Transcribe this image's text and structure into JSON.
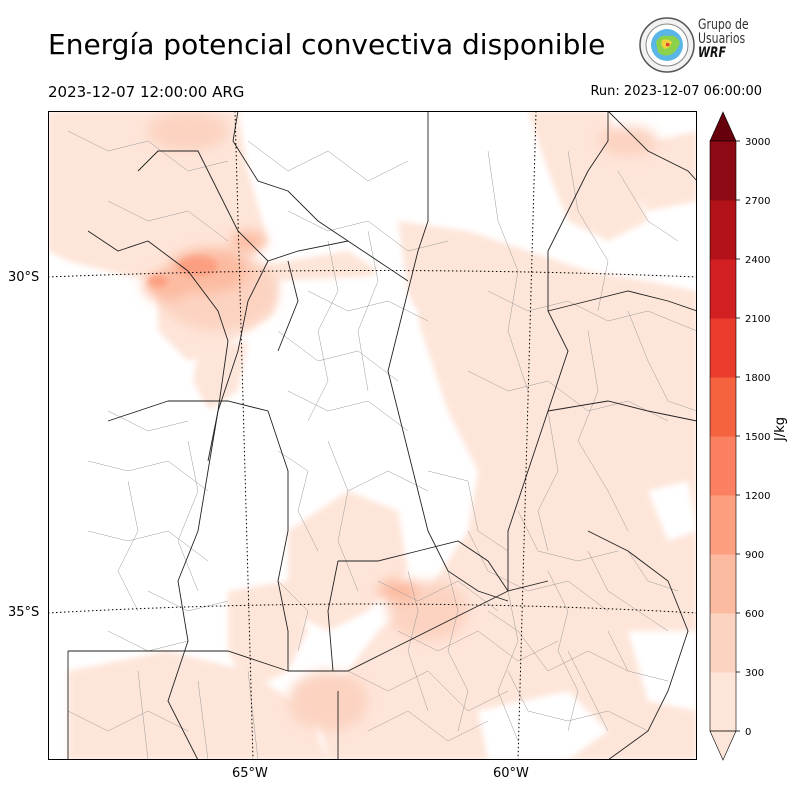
{
  "title": "Energía potencial convectiva disponible",
  "valid_time": "2023-12-07 12:00:00 ARG",
  "run_time": "Run: 2023-12-07 06:00:00",
  "logo": {
    "line1": "Grupo de",
    "line2": "Usuarios",
    "line3": "WRF",
    "icon": "globe-seal-icon"
  },
  "map": {
    "field": "CAPE",
    "lat_labels": [
      "30°S",
      "35°S"
    ],
    "lon_labels": [
      "65°W",
      "60°W"
    ],
    "gridlines": "dotted",
    "colors": {
      "border": "#1a1a1a",
      "department": "#888888",
      "gridline": "#000000"
    }
  },
  "colorbar": {
    "label": "J/kg",
    "ticks": [
      "0",
      "300",
      "600",
      "900",
      "1200",
      "1500",
      "1800",
      "2100",
      "2400",
      "2700",
      "3000"
    ],
    "colors": [
      "#fee5d9",
      "#fcd3c1",
      "#fcbba1",
      "#fc9f81",
      "#fb8061",
      "#f4623f",
      "#ea3b2c",
      "#d21f22",
      "#b31218",
      "#8d0a14",
      "#67000d"
    ],
    "extend": "both"
  }
}
